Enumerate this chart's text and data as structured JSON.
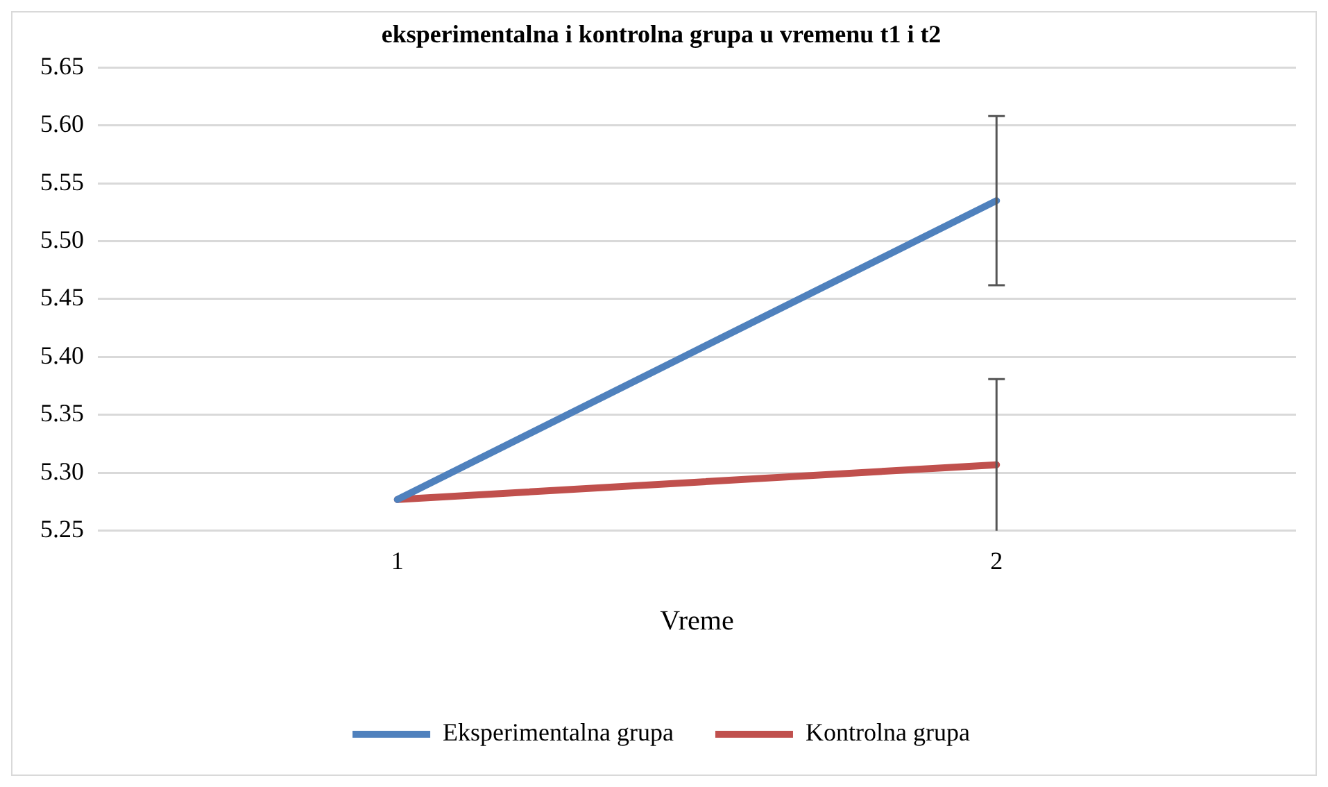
{
  "chart_data": {
    "type": "line",
    "title": "eksperimentalna i kontrolna grupa u vremenu t1 i t2",
    "xlabel": "Vreme",
    "categories": [
      "1",
      "2"
    ],
    "series": [
      {
        "name": "Eksperimentalna grupa",
        "color": "#4f81bd",
        "values": [
          5.277,
          5.535
        ],
        "errors": [
          null,
          [
            5.462,
            5.608
          ]
        ]
      },
      {
        "name": "Kontrolna grupa",
        "color": "#c0504d",
        "values": [
          5.277,
          5.307
        ],
        "errors": [
          null,
          [
            5.25,
            5.381
          ]
        ]
      }
    ],
    "ylim": [
      5.25,
      5.65
    ],
    "yticks": [
      5.25,
      {
        "value": 5.3,
        "label": "5.30"
      },
      5.35,
      {
        "value": 5.4,
        "label": "5.40"
      },
      5.45,
      {
        "value": 5.5,
        "label": "5.50"
      },
      5.55,
      {
        "value": 5.6,
        "label": "5.60"
      },
      5.65
    ],
    "grid": "y",
    "legend": "bottom",
    "marker": "none",
    "line_style": "solid"
  }
}
